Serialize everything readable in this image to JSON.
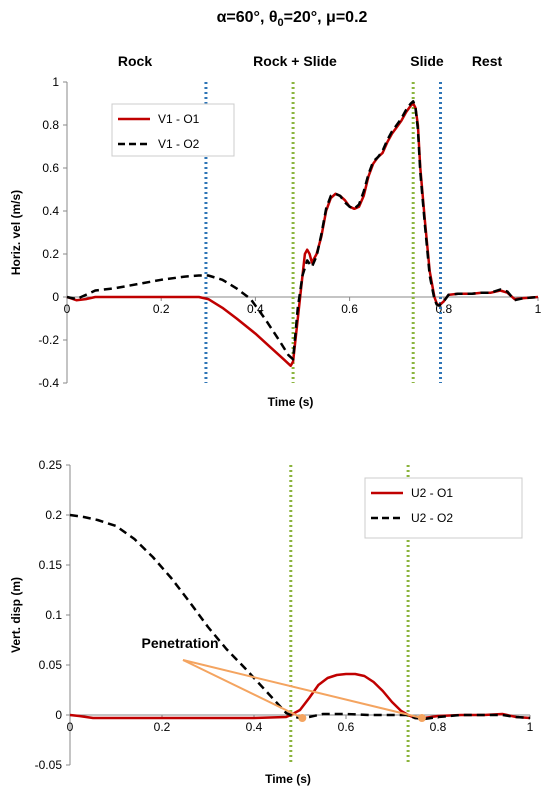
{
  "title": {
    "alpha": "α=60°, θ",
    "theta_sub": "0",
    "rest": "=20°, μ=0.2"
  },
  "chart_data": [
    {
      "type": "line",
      "xlabel": "Time (s)",
      "ylabel": "Horiz. vel (m/s)",
      "xlim": [
        0,
        1
      ],
      "ylim": [
        -0.4,
        1
      ],
      "x_ticks": [
        "0",
        "0.2",
        "0.4",
        "0.6",
        "0.8",
        "1"
      ],
      "y_ticks": [
        "-0.4",
        "-0.2",
        "0",
        "0.2",
        "0.4",
        "0.6",
        "0.8",
        "1"
      ],
      "phases": [
        "Rock",
        "Rock + Slide",
        "Slide",
        "Rest"
      ],
      "vlines": [
        {
          "x": 0.295,
          "color": "#2E75B6"
        },
        {
          "x": 0.48,
          "color": "#8BB43D"
        },
        {
          "x": 0.735,
          "color": "#8BB43D"
        },
        {
          "x": 0.793,
          "color": "#2E75B6"
        }
      ],
      "legend": "upper-left",
      "series": [
        {
          "name": "V1 - O1",
          "color": "#C00000",
          "style": "solid",
          "points": [
            [
              0,
              0
            ],
            [
              0.02,
              -0.015
            ],
            [
              0.04,
              -0.01
            ],
            [
              0.06,
              0
            ],
            [
              0.1,
              0
            ],
            [
              0.2,
              0
            ],
            [
              0.28,
              0
            ],
            [
              0.3,
              -0.01
            ],
            [
              0.33,
              -0.05
            ],
            [
              0.36,
              -0.1
            ],
            [
              0.4,
              -0.17
            ],
            [
              0.43,
              -0.23
            ],
            [
              0.46,
              -0.29
            ],
            [
              0.475,
              -0.32
            ],
            [
              0.48,
              -0.3
            ],
            [
              0.49,
              -0.1
            ],
            [
              0.5,
              0.1
            ],
            [
              0.505,
              0.2
            ],
            [
              0.51,
              0.22
            ],
            [
              0.515,
              0.2
            ],
            [
              0.52,
              0.16
            ],
            [
              0.53,
              0.2
            ],
            [
              0.54,
              0.28
            ],
            [
              0.55,
              0.4
            ],
            [
              0.56,
              0.46
            ],
            [
              0.57,
              0.48
            ],
            [
              0.58,
              0.47
            ],
            [
              0.59,
              0.45
            ],
            [
              0.6,
              0.42
            ],
            [
              0.61,
              0.41
            ],
            [
              0.62,
              0.42
            ],
            [
              0.63,
              0.47
            ],
            [
              0.64,
              0.56
            ],
            [
              0.65,
              0.62
            ],
            [
              0.66,
              0.65
            ],
            [
              0.67,
              0.67
            ],
            [
              0.68,
              0.72
            ],
            [
              0.69,
              0.76
            ],
            [
              0.7,
              0.79
            ],
            [
              0.71,
              0.82
            ],
            [
              0.72,
              0.86
            ],
            [
              0.73,
              0.89
            ],
            [
              0.735,
              0.9
            ],
            [
              0.74,
              0.88
            ],
            [
              0.745,
              0.8
            ],
            [
              0.75,
              0.6
            ],
            [
              0.76,
              0.35
            ],
            [
              0.77,
              0.12
            ],
            [
              0.78,
              0.0
            ],
            [
              0.785,
              -0.03
            ],
            [
              0.79,
              -0.04
            ],
            [
              0.8,
              -0.02
            ],
            [
              0.81,
              0.01
            ],
            [
              0.83,
              0.015
            ],
            [
              0.86,
              0.015
            ],
            [
              0.88,
              0.02
            ],
            [
              0.9,
              0.02
            ],
            [
              0.92,
              0.03
            ],
            [
              0.935,
              0.02
            ],
            [
              0.95,
              -0.01
            ],
            [
              0.97,
              -0.005
            ],
            [
              1,
              0
            ]
          ]
        },
        {
          "name": "V1 - O2",
          "color": "#000000",
          "style": "dashed",
          "points": [
            [
              0,
              0
            ],
            [
              0.02,
              -0.01
            ],
            [
              0.04,
              0.01
            ],
            [
              0.06,
              0.03
            ],
            [
              0.1,
              0.04
            ],
            [
              0.15,
              0.06
            ],
            [
              0.2,
              0.08
            ],
            [
              0.25,
              0.095
            ],
            [
              0.28,
              0.1
            ],
            [
              0.3,
              0.1
            ],
            [
              0.33,
              0.08
            ],
            [
              0.36,
              0.04
            ],
            [
              0.39,
              -0.01
            ],
            [
              0.42,
              -0.1
            ],
            [
              0.45,
              -0.2
            ],
            [
              0.47,
              -0.27
            ],
            [
              0.48,
              -0.29
            ],
            [
              0.49,
              -0.05
            ],
            [
              0.5,
              0.1
            ],
            [
              0.51,
              0.17
            ],
            [
              0.52,
              0.14
            ],
            [
              0.53,
              0.19
            ],
            [
              0.54,
              0.29
            ],
            [
              0.55,
              0.41
            ],
            [
              0.56,
              0.47
            ],
            [
              0.57,
              0.48
            ],
            [
              0.58,
              0.47
            ],
            [
              0.59,
              0.44
            ],
            [
              0.6,
              0.42
            ],
            [
              0.61,
              0.41
            ],
            [
              0.62,
              0.43
            ],
            [
              0.63,
              0.49
            ],
            [
              0.64,
              0.57
            ],
            [
              0.65,
              0.63
            ],
            [
              0.66,
              0.65
            ],
            [
              0.67,
              0.68
            ],
            [
              0.68,
              0.73
            ],
            [
              0.69,
              0.77
            ],
            [
              0.7,
              0.8
            ],
            [
              0.71,
              0.83
            ],
            [
              0.72,
              0.87
            ],
            [
              0.73,
              0.9
            ],
            [
              0.735,
              0.91
            ],
            [
              0.74,
              0.88
            ],
            [
              0.745,
              0.78
            ],
            [
              0.75,
              0.58
            ],
            [
              0.76,
              0.33
            ],
            [
              0.77,
              0.1
            ],
            [
              0.78,
              -0.01
            ],
            [
              0.785,
              -0.035
            ],
            [
              0.79,
              -0.04
            ],
            [
              0.8,
              -0.02
            ],
            [
              0.81,
              0.01
            ],
            [
              0.83,
              0.015
            ],
            [
              0.86,
              0.015
            ],
            [
              0.88,
              0.02
            ],
            [
              0.9,
              0.02
            ],
            [
              0.92,
              0.035
            ],
            [
              0.935,
              0.025
            ],
            [
              0.95,
              -0.015
            ],
            [
              0.97,
              -0.005
            ],
            [
              1,
              0
            ]
          ]
        }
      ]
    },
    {
      "type": "line",
      "xlabel": "Time (s)",
      "ylabel": "Vert. disp (m)",
      "xlim": [
        0,
        1
      ],
      "ylim": [
        -0.05,
        0.25
      ],
      "x_ticks": [
        "0",
        "0.2",
        "0.4",
        "0.6",
        "0.8",
        "1"
      ],
      "y_ticks": [
        "-0.05",
        "0",
        "0.05",
        "0.1",
        "0.15",
        "0.2",
        "0.25"
      ],
      "vlines": [
        {
          "x": 0.48,
          "color": "#8BB43D"
        },
        {
          "x": 0.735,
          "color": "#8BB43D"
        }
      ],
      "legend": "upper-right",
      "annotation": {
        "text": "Penetration",
        "targets": [
          [
            0.505,
            -0.003
          ],
          [
            0.765,
            -0.003
          ]
        ]
      },
      "series": [
        {
          "name": "U2 - O1",
          "color": "#C00000",
          "style": "solid",
          "points": [
            [
              0,
              0
            ],
            [
              0.02,
              -0.001
            ],
            [
              0.05,
              -0.003
            ],
            [
              0.1,
              -0.003
            ],
            [
              0.2,
              -0.003
            ],
            [
              0.3,
              -0.003
            ],
            [
              0.4,
              -0.003
            ],
            [
              0.47,
              -0.002
            ],
            [
              0.48,
              0
            ],
            [
              0.5,
              0.005
            ],
            [
              0.52,
              0.017
            ],
            [
              0.54,
              0.03
            ],
            [
              0.56,
              0.037
            ],
            [
              0.58,
              0.04
            ],
            [
              0.6,
              0.041
            ],
            [
              0.62,
              0.041
            ],
            [
              0.64,
              0.039
            ],
            [
              0.66,
              0.033
            ],
            [
              0.68,
              0.024
            ],
            [
              0.7,
              0.013
            ],
            [
              0.72,
              0.004
            ],
            [
              0.735,
              0
            ],
            [
              0.75,
              -0.003
            ],
            [
              0.77,
              -0.003
            ],
            [
              0.8,
              -0.001
            ],
            [
              0.85,
              0
            ],
            [
              0.9,
              0
            ],
            [
              0.94,
              0.001
            ],
            [
              0.97,
              -0.002
            ],
            [
              1,
              -0.003
            ]
          ]
        },
        {
          "name": "U2 - O2",
          "color": "#000000",
          "style": "dashed",
          "points": [
            [
              0,
              0.2
            ],
            [
              0.03,
              0.198
            ],
            [
              0.06,
              0.195
            ],
            [
              0.1,
              0.189
            ],
            [
              0.14,
              0.176
            ],
            [
              0.18,
              0.158
            ],
            [
              0.22,
              0.137
            ],
            [
              0.26,
              0.113
            ],
            [
              0.3,
              0.088
            ],
            [
              0.34,
              0.066
            ],
            [
              0.38,
              0.047
            ],
            [
              0.41,
              0.032
            ],
            [
              0.44,
              0.017
            ],
            [
              0.46,
              0.007
            ],
            [
              0.47,
              0.002
            ],
            [
              0.48,
              0
            ],
            [
              0.49,
              -0.002
            ],
            [
              0.5,
              -0.003
            ],
            [
              0.52,
              -0.002
            ],
            [
              0.55,
              0.001
            ],
            [
              0.6,
              0.001
            ],
            [
              0.65,
              0
            ],
            [
              0.7,
              0
            ],
            [
              0.72,
              0
            ],
            [
              0.735,
              0
            ],
            [
              0.75,
              -0.003
            ],
            [
              0.77,
              -0.004
            ],
            [
              0.8,
              -0.002
            ],
            [
              0.85,
              0
            ],
            [
              0.9,
              0
            ],
            [
              0.94,
              0
            ],
            [
              0.97,
              -0.002
            ],
            [
              1,
              -0.003
            ]
          ]
        }
      ]
    }
  ]
}
